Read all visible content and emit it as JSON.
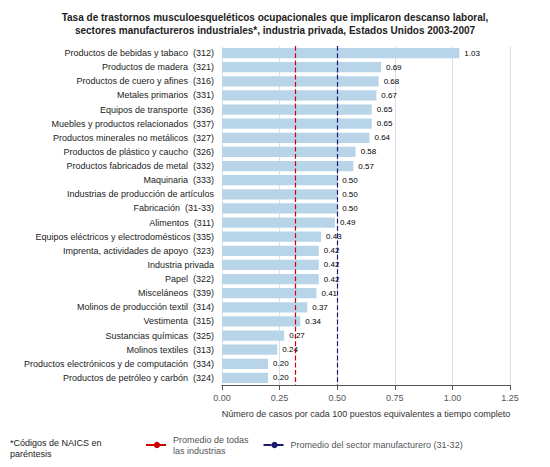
{
  "chart_data": {
    "type": "bar",
    "orientation": "horizontal",
    "title": "Tasa de trastornos musculoesqueléticos ocupacionales que implicaron descanso laboral,\nsectores manufactureros industriales*, industria privada, Estados Unidos 2003-2007",
    "categories": [
      "Productos de bebidas y tabaco  (312)",
      "Productos de madera  (321)",
      "Productos de cuero y afines  (316)",
      "Metales primarios  (331)",
      "Equipos de transporte  (336)",
      "Muebles y productos relacionados  (337)",
      "Productos minerales no metálicos  (327)",
      "Productos de plástico y caucho  (326)",
      "Productos fabricados de metal  (332)",
      "Maquinaria  (333)",
      "Industrias de producción de artículos",
      "Fabricación  (31-33)",
      "Alimentos  (311)",
      "Equipos eléctricos y electrodomésticos (335)",
      "Imprenta, actividades de apoyo  (323)",
      "Industria privada",
      "Papel  (322)",
      "Misceláneos  (339)",
      "Molinos de producción textil  (314)",
      "Vestimenta  (315)",
      "Sustancias químicas  (325)",
      "Molinos textiles  (313)",
      "Productos electrónicos y de computación  (334)",
      "Productos de petróleo y carbón  (324)"
    ],
    "values": [
      1.03,
      0.69,
      0.68,
      0.67,
      0.65,
      0.65,
      0.64,
      0.58,
      0.57,
      0.5,
      0.5,
      0.5,
      0.49,
      0.43,
      0.42,
      0.42,
      0.42,
      0.41,
      0.37,
      0.34,
      0.27,
      0.24,
      0.2,
      0.2
    ],
    "value_labels": [
      "1.03",
      "0.69",
      "0.68",
      "0.67",
      "0.65",
      "0.65",
      "0.64",
      "0.58",
      "0.57",
      "0.50",
      "0.50",
      "0.50",
      "0.49",
      "0.43",
      "0.42",
      "0.42",
      "0.42",
      "0.41",
      "0.37",
      "0.34",
      "0.27",
      "0.24",
      "0.20",
      "0.20"
    ],
    "data_labels": true,
    "color": "#b8d4e8",
    "xlim": [
      0,
      1.25
    ],
    "xticks": [
      {
        "value": 0,
        "label": "0.00"
      },
      {
        "value": 0.25,
        "label": "0.25"
      },
      {
        "value": 0.5,
        "label": "0.50"
      },
      {
        "value": 0.75,
        "label": "0.75"
      },
      {
        "value": 1,
        "label": "1.00"
      },
      {
        "value": 1.25,
        "label": "1.25"
      }
    ],
    "xlabel": "Número de casos por cada 100 puestos equivalentes a tiempo completo",
    "grid": true,
    "legend": "bottom",
    "reference_lines": [
      {
        "name": "Promedio de todas\nlas industrias",
        "value": 0.32,
        "color": "#cc0000",
        "line_style": "dashed"
      },
      {
        "name": "Promedio del sector manufacturero (31-32)",
        "value": 0.5,
        "color": "#1a1a6e",
        "line_style": "dashed"
      }
    ],
    "annotations": [
      "*Códigos de NAICS en\nparéntesis"
    ]
  }
}
